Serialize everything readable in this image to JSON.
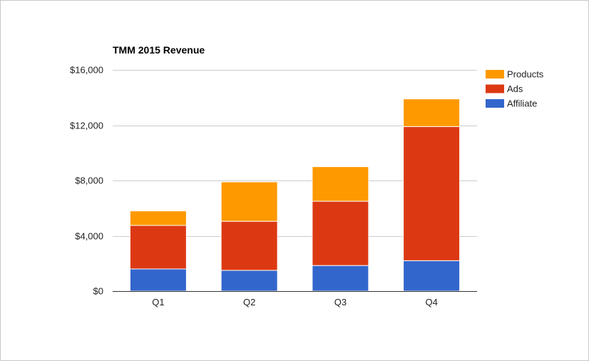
{
  "chart_data": {
    "type": "bar",
    "stacked": true,
    "title": "TMM 2015 Revenue",
    "xlabel": "",
    "ylabel": "",
    "categories": [
      "Q1",
      "Q2",
      "Q3",
      "Q4"
    ],
    "ylim": [
      0,
      16000
    ],
    "y_ticks": [
      0,
      4000,
      8000,
      12000,
      16000
    ],
    "y_tick_labels": [
      "$0",
      "$4,000",
      "$8,000",
      "$12,000",
      "$16,000"
    ],
    "grid": true,
    "legend_position": "right",
    "series": [
      {
        "name": "Affiliate",
        "color": "#3366cc",
        "values": [
          1600,
          1500,
          1850,
          2200
        ]
      },
      {
        "name": "Ads",
        "color": "#dc3912",
        "values": [
          3150,
          3550,
          4650,
          9700
        ]
      },
      {
        "name": "Products",
        "color": "#ff9900",
        "values": [
          1050,
          2850,
          2500,
          2000
        ]
      }
    ],
    "legend_order": [
      "Products",
      "Ads",
      "Affiliate"
    ]
  }
}
